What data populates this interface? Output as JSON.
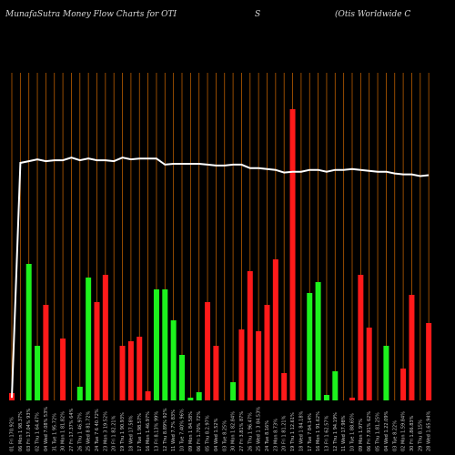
{
  "header": {
    "title_left": "MunafaSutra  Money Flow  Charts for OTI",
    "title_mid": "S",
    "title_right": "(Otis Worldwide    C"
  },
  "chart_data": {
    "type": "bar",
    "title": "MunafaSutra  Money Flow  Charts for OTI",
    "colors": {
      "up": "#1df21d",
      "down": "#ff1a1a",
      "grid": "#b85c00",
      "line": "#ffffff",
      "background": "#000000"
    },
    "categories": [
      "01 Fri 170.92%",
      "06 Mon 1 98.37%",
      "03 Fri 17.04% 93%",
      "02 Thu 1 64.47%",
      "04 Wed 7.08% 53%",
      "31 Tue 1 95.72%",
      "30 Mon 1 81.82%",
      "27 Fri 17.37% 64%",
      "26 Thu 1 46.97%",
      "25 Wed 8 81.72%",
      "24 Tue 7 6 40.72%",
      "23 Mon 3 19.52%",
      "20 Fri 1 82.21%",
      "19 Thu 1 90.93%",
      "18 Wed 17.58%",
      "17 Tue 1.98.57%",
      "16 Mon 1.46.97%",
      "13 Fri 8.13% 99%",
      "12 Thu 8.89% 92%",
      "11 Wed 7.7% 83%",
      "10 Tue 7.40% 96%",
      "09 Mon 1 84.58%",
      "06 Fri 1.70% 72%",
      "05 Thu 8.2.97%",
      "04 Wed 1.52%",
      "03 Tue 8.25%",
      "30 Mon 1 82.84%",
      "27 Fri 3.81% 87%",
      "26 Thu 1 96.47%",
      "25 Wed 1 3 84.53%",
      "24 Tue 8.16%",
      "23 Mon 8.73%",
      "20 Fri 1 81.21%",
      "19 Thu 1 12.61%",
      "18 Wed 1 84.18%",
      "17 Tue 7 84.14%",
      "16 Mon 1 91.62%",
      "13 Fri 1 62.57%",
      "12 Thu 1 94.19%",
      "11 Wed 17.98%",
      "10 Tue 1 88.65%",
      "09 Mon 1.97%",
      "06 Fri 7.91% 62%",
      "05 Thu 1.81.25%",
      "04 Wed 1.22.09%",
      "03 Tue 8.22%",
      "02 Mon 1.59.84%",
      "30 Fri 1.86.83%",
      "29 Thu 8.15%",
      "28 Wed 1.65.94%"
    ],
    "volumes": [
      8,
      0,
      150,
      60,
      105,
      0,
      68,
      0,
      15,
      135,
      108,
      138,
      0,
      60,
      65,
      70,
      10,
      122,
      122,
      88,
      50,
      3,
      9,
      108,
      60,
      0,
      20,
      78,
      142,
      76,
      105,
      155,
      30,
      320,
      0,
      118,
      130,
      6,
      32,
      0,
      3,
      138,
      80,
      0,
      60,
      0,
      35,
      116,
      0,
      85
    ],
    "directions": [
      "down",
      "up",
      "up",
      "up",
      "down",
      "up",
      "down",
      "up",
      "up",
      "up",
      "down",
      "down",
      "up",
      "down",
      "down",
      "down",
      "down",
      "up",
      "up",
      "up",
      "up",
      "up",
      "up",
      "down",
      "down",
      "up",
      "up",
      "down",
      "down",
      "down",
      "down",
      "down",
      "down",
      "down",
      "up",
      "up",
      "up",
      "up",
      "up",
      "up",
      "down",
      "down",
      "down",
      "up",
      "up",
      "up",
      "down",
      "down",
      "down",
      "down"
    ],
    "price_line": [
      3,
      270,
      272,
      274,
      272,
      273,
      273,
      276,
      273,
      275,
      273,
      273,
      272,
      276,
      274,
      275,
      275,
      275,
      268,
      269,
      269,
      269,
      269,
      268,
      267,
      267,
      268,
      268,
      264,
      264,
      263,
      262,
      259,
      260,
      260,
      262,
      262,
      260,
      262,
      262,
      263,
      262,
      261,
      260,
      260,
      258,
      257,
      257,
      255,
      256
    ]
  }
}
